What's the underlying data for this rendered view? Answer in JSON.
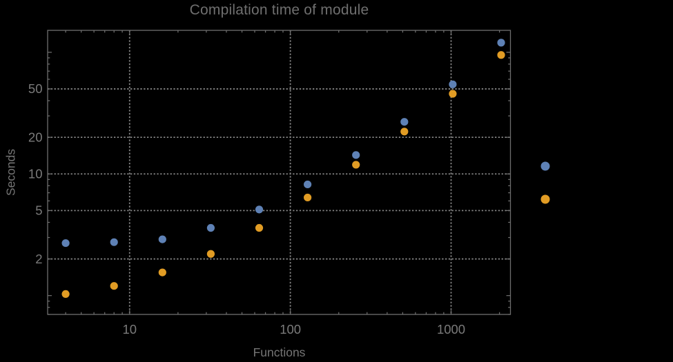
{
  "style": {
    "background": "#000000",
    "frame_color": "#6e6e6e",
    "grid_color": "#848484",
    "tick_label_color": "#7a7a7a",
    "title_color": "#6f6f6f",
    "axis_label_color": "#757575"
  },
  "chart_data": {
    "type": "scatter",
    "title": "Compilation time of module",
    "xlabel": "Functions",
    "ylabel": "Seconds",
    "xscale": "log",
    "yscale": "log",
    "xlim": [
      3.09,
      2340
    ],
    "ylim": [
      0.7,
      151.5
    ],
    "grid": "dotted, at labeled major ticks only",
    "legend_position": "right-outside, markers only (no visible labels)",
    "x": [
      4,
      8,
      16,
      32,
      64,
      128,
      256,
      512,
      1024,
      2048
    ],
    "series": [
      {
        "name": "series-1-blue",
        "color": "#5E81B5",
        "marker": "circle",
        "values": [
          2.7,
          2.75,
          2.9,
          3.6,
          5.1,
          8.2,
          14.3,
          26.8,
          54.5,
          120
        ]
      },
      {
        "name": "series-2-orange",
        "color": "#E19C24",
        "marker": "circle",
        "values": [
          1.03,
          1.2,
          1.55,
          2.2,
          3.6,
          6.4,
          11.9,
          22.3,
          45.6,
          95
        ]
      }
    ],
    "x_ticks": {
      "values": [
        10,
        100,
        1000
      ],
      "labels": [
        "10",
        "100",
        "1000"
      ]
    },
    "y_ticks": {
      "values": [
        2,
        5,
        10,
        20,
        50
      ],
      "labels": [
        "2",
        "5",
        "10",
        "20",
        "50"
      ]
    },
    "y_ticks_unlabeled_major": [
      1,
      100
    ],
    "legend": {
      "entries": [
        {
          "series": "series-1-blue",
          "label": ""
        },
        {
          "series": "series-2-orange",
          "label": ""
        }
      ]
    }
  }
}
